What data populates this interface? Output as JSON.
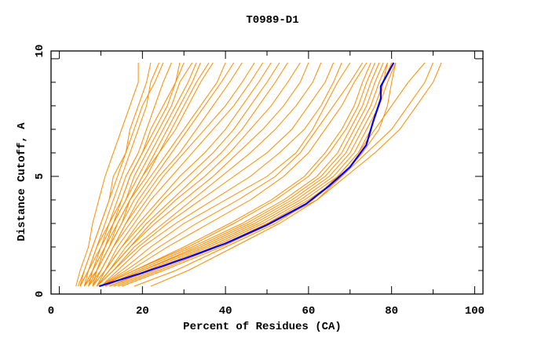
{
  "chart_data": {
    "type": "line",
    "title": "T0989-D1",
    "xlabel": "Percent of Residues (CA)",
    "ylabel": "Distance Cutoff, A",
    "xlim": [
      -2,
      102
    ],
    "ylim": [
      0,
      10.33
    ],
    "xticks": [
      0,
      20,
      40,
      60,
      80,
      100
    ],
    "yticks": [
      0,
      5,
      10
    ],
    "grid": false,
    "colors": {
      "models": "#ff8c00",
      "highlight": "#0000ff"
    },
    "y_levels": [
      0.33,
      1,
      2,
      3,
      4,
      5,
      6,
      7,
      8,
      9,
      9.83
    ],
    "series": [
      {
        "x": [
          4,
          5,
          7,
          8,
          9.5,
          11,
          13,
          15,
          17,
          19,
          19
        ]
      },
      {
        "x": [
          4.5,
          6,
          8,
          10,
          12,
          14,
          16,
          17,
          19,
          21,
          22
        ]
      },
      {
        "x": [
          5,
          7,
          9,
          11,
          13,
          15,
          17,
          19,
          21,
          22,
          24
        ]
      },
      {
        "x": [
          5,
          7,
          9,
          12,
          14,
          16,
          19,
          21,
          23,
          25,
          27
        ]
      },
      {
        "x": [
          6,
          8,
          10,
          13,
          15,
          17,
          20,
          23,
          26,
          28,
          30
        ]
      },
      {
        "x": [
          6,
          8,
          11,
          13,
          16,
          18,
          21,
          24,
          27,
          29,
          32
        ]
      },
      {
        "x": [
          6,
          9,
          11,
          14,
          17,
          20,
          23,
          26,
          29,
          32,
          34
        ]
      },
      {
        "x": [
          7,
          9,
          12,
          15,
          17,
          21,
          24,
          28,
          31,
          34,
          37
        ]
      },
      {
        "x": [
          7,
          9,
          12,
          15,
          18,
          22,
          26,
          30,
          34,
          38,
          40
        ]
      },
      {
        "x": [
          7,
          10,
          13,
          16,
          19,
          23,
          27,
          31,
          35,
          39,
          42
        ]
      },
      {
        "x": [
          8,
          10,
          13,
          16,
          20,
          24,
          29,
          33,
          37,
          41,
          44
        ]
      },
      {
        "x": [
          8,
          10,
          13,
          17,
          21,
          25,
          30,
          35,
          40,
          44,
          47
        ]
      },
      {
        "x": [
          8,
          11,
          14,
          18,
          22,
          27,
          32,
          37,
          42,
          46,
          49
        ]
      },
      {
        "x": [
          8,
          11,
          15,
          19,
          24,
          29,
          35,
          40,
          44,
          48,
          51
        ]
      },
      {
        "x": [
          9,
          11,
          15,
          20,
          25,
          31,
          37,
          42,
          46,
          50,
          53
        ]
      },
      {
        "x": [
          9,
          12,
          16,
          21,
          27,
          33,
          39,
          44,
          48,
          52,
          55
        ]
      },
      {
        "x": [
          9,
          12,
          17,
          22,
          28,
          35,
          41,
          46,
          51,
          55,
          58
        ]
      },
      {
        "x": [
          9,
          12,
          17,
          23,
          30,
          37,
          43,
          49,
          54,
          58,
          60
        ]
      },
      {
        "x": [
          9,
          13,
          18,
          25,
          32,
          39,
          46,
          52,
          57,
          61,
          63
        ]
      },
      {
        "x": [
          9,
          13,
          19,
          26,
          34,
          42,
          50,
          56,
          60,
          64,
          66
        ]
      },
      {
        "x": [
          10,
          14,
          20,
          28,
          37,
          46,
          53,
          59,
          63,
          66,
          68
        ]
      },
      {
        "x": [
          10,
          15,
          22,
          30,
          40,
          50,
          57,
          61,
          64,
          67,
          70
        ]
      },
      {
        "x": [
          10,
          16,
          24,
          33,
          43,
          52,
          58,
          62,
          66,
          70,
          73
        ]
      },
      {
        "x": [
          10,
          17,
          26,
          36,
          46,
          54,
          60,
          64,
          68,
          71,
          74
        ]
      },
      {
        "x": [
          10,
          18,
          30,
          41,
          51,
          59,
          64,
          68,
          71,
          73,
          75
        ]
      },
      {
        "x": [
          10,
          18,
          31,
          42,
          52,
          60,
          65,
          69,
          72,
          74,
          76
        ]
      },
      {
        "x": [
          11,
          19,
          32,
          44,
          54,
          62,
          67,
          70,
          73,
          75,
          77
        ]
      },
      {
        "x": [
          11,
          20,
          33,
          45,
          55,
          63,
          68,
          71,
          74,
          76,
          78
        ]
      },
      {
        "x": [
          11,
          20,
          34,
          46,
          56,
          64,
          69,
          72,
          75,
          77,
          79
        ]
      },
      {
        "x": [
          12,
          21,
          35,
          47,
          57,
          65,
          70,
          73,
          76,
          78,
          80
        ]
      },
      {
        "x": [
          12,
          22,
          36,
          48,
          58,
          66,
          71,
          74,
          77,
          79,
          81
        ]
      },
      {
        "x": [
          13,
          23,
          37,
          49,
          59,
          67,
          72,
          76,
          80,
          84,
          88
        ]
      },
      {
        "x": [
          14,
          24,
          38,
          50,
          60,
          68,
          74,
          80,
          84,
          88,
          90
        ]
      },
      {
        "x": [
          15,
          25,
          39,
          51,
          62,
          69,
          76,
          82,
          86,
          90,
          92
        ]
      },
      {
        "x": [
          22,
          31,
          42,
          53,
          62,
          68,
          73,
          77,
          79,
          80,
          81
        ]
      },
      {
        "x": [
          18,
          28,
          40,
          52,
          61,
          67,
          72,
          75,
          77,
          78,
          79
        ]
      },
      {
        "x": [
          5,
          6,
          8,
          10,
          12,
          13,
          16,
          18,
          20,
          23,
          25
        ]
      },
      {
        "x": [
          6,
          7,
          10,
          12,
          15,
          17,
          20,
          22,
          25,
          28,
          29
        ]
      },
      {
        "x": [
          7,
          8,
          11,
          13,
          16,
          19,
          22,
          25,
          28,
          31,
          33
        ]
      },
      {
        "x": [
          8,
          9,
          12,
          14,
          17,
          20,
          24,
          27,
          30,
          33,
          36
        ]
      }
    ],
    "highlight": {
      "x": [
        9.6,
        20,
        30,
        40,
        49.9,
        59.4,
        65,
        70,
        73.9,
        75.5,
        77.4,
        77.4,
        80.5
      ],
      "y": [
        0.33,
        0.9,
        1.5,
        2.15,
        2.93,
        3.83,
        4.6,
        5.4,
        6.33,
        7.3,
        8.3,
        8.83,
        9.83
      ]
    }
  }
}
